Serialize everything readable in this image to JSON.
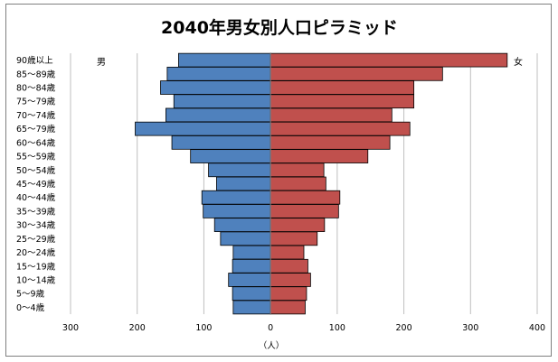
{
  "chart_data": {
    "type": "bar",
    "orientation": "horizontal",
    "layout": "population-pyramid",
    "title": "2040年男女別人口ピラミッド",
    "xlabel": "（人）",
    "xlim": [
      -300,
      400
    ],
    "x_ticks": [
      -300,
      -200,
      -100,
      0,
      100,
      200,
      300,
      400
    ],
    "x_tick_labels": [
      "300",
      "200",
      "100",
      "0",
      "100",
      "200",
      "300",
      "400"
    ],
    "grid": "vertical",
    "categories": [
      "0～4歳",
      "5～9歳",
      "10～14歳",
      "15～19歳",
      "20～24歳",
      "25～29歳",
      "30～34歳",
      "35～39歳",
      "40～44歳",
      "45～49歳",
      "50～54歳",
      "55～59歳",
      "60～64歳",
      "65～79歳",
      "70～74歳",
      "75～79歳",
      "80～84歳",
      "85～89歳",
      "90歳以上"
    ],
    "series": [
      {
        "name": "男",
        "color": "#4f81bd",
        "values": [
          56,
          57,
          63,
          57,
          56,
          75,
          84,
          101,
          103,
          81,
          93,
          120,
          148,
          203,
          157,
          145,
          165,
          155,
          138
        ]
      },
      {
        "name": "女",
        "color": "#c0504d",
        "values": [
          52,
          54,
          60,
          56,
          50,
          70,
          81,
          102,
          104,
          83,
          80,
          146,
          179,
          209,
          182,
          215,
          215,
          258,
          355
        ]
      }
    ]
  }
}
